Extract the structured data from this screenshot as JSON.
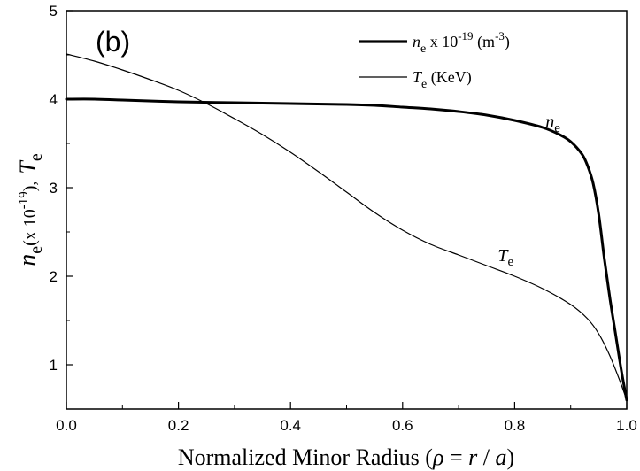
{
  "chart_data": {
    "type": "line",
    "panel_label": "(b)",
    "xlabel": {
      "prefix": "Normalized Minor Radius (",
      "rho": "ρ",
      "mid": " = ",
      "r": "r",
      "slash": " / ",
      "a": "a",
      "suffix": ")"
    },
    "ylabel": {
      "n": "n",
      "n_sub": "e",
      "unit": "(x 10",
      "exp": "-19",
      "close": "),",
      "T": "T",
      "T_sub": "e"
    },
    "xlim": [
      0.0,
      1.0
    ],
    "ylim": [
      0.5,
      5.0
    ],
    "xticks": [
      {
        "value": 0.0,
        "label": "0.0"
      },
      {
        "value": 0.2,
        "label": "0.2"
      },
      {
        "value": 0.4,
        "label": "0.4"
      },
      {
        "value": 0.6,
        "label": "0.6"
      },
      {
        "value": 0.8,
        "label": "0.8"
      },
      {
        "value": 1.0,
        "label": "1.0"
      }
    ],
    "yticks": [
      {
        "value": 1,
        "label": "1"
      },
      {
        "value": 2,
        "label": "2"
      },
      {
        "value": 3,
        "label": "3"
      },
      {
        "value": 4,
        "label": "4"
      },
      {
        "value": 5,
        "label": "5"
      }
    ],
    "legend_position": "top-right",
    "legend": [
      {
        "var": "n",
        "sub": "e",
        "text": " x 10",
        "exp": "-19",
        "unit": " (m",
        "unit_exp": "-3",
        "close": ")",
        "weight": "thick"
      },
      {
        "var": "T",
        "sub": "e",
        "text": " (KeV)",
        "weight": "thin"
      }
    ],
    "annotations": [
      {
        "var": "n",
        "sub": "e",
        "x": 0.855,
        "y": 3.68
      },
      {
        "var": "T",
        "sub": "e",
        "x": 0.77,
        "y": 2.17
      }
    ],
    "series": [
      {
        "weight": "thick",
        "x": [
          0.0,
          0.05,
          0.1,
          0.2,
          0.3,
          0.4,
          0.5,
          0.55,
          0.6,
          0.65,
          0.7,
          0.75,
          0.8,
          0.85,
          0.88,
          0.9,
          0.92,
          0.93,
          0.94,
          0.95,
          0.96,
          0.97,
          0.98,
          0.99,
          1.0
        ],
        "y": [
          4.0,
          4.0,
          3.99,
          3.97,
          3.96,
          3.95,
          3.94,
          3.93,
          3.91,
          3.89,
          3.86,
          3.82,
          3.76,
          3.68,
          3.6,
          3.52,
          3.38,
          3.25,
          3.05,
          2.7,
          2.2,
          1.75,
          1.35,
          0.95,
          0.6
        ]
      },
      {
        "weight": "thin",
        "x": [
          0.0,
          0.05,
          0.1,
          0.15,
          0.2,
          0.25,
          0.3,
          0.35,
          0.4,
          0.45,
          0.5,
          0.55,
          0.6,
          0.65,
          0.7,
          0.75,
          0.8,
          0.85,
          0.9,
          0.93,
          0.95,
          0.97,
          0.99,
          1.0
        ],
        "y": [
          4.51,
          4.43,
          4.33,
          4.22,
          4.1,
          3.95,
          3.78,
          3.6,
          3.4,
          3.18,
          2.95,
          2.72,
          2.52,
          2.36,
          2.24,
          2.12,
          2.0,
          1.86,
          1.68,
          1.52,
          1.35,
          1.1,
          0.78,
          0.6
        ]
      }
    ]
  }
}
